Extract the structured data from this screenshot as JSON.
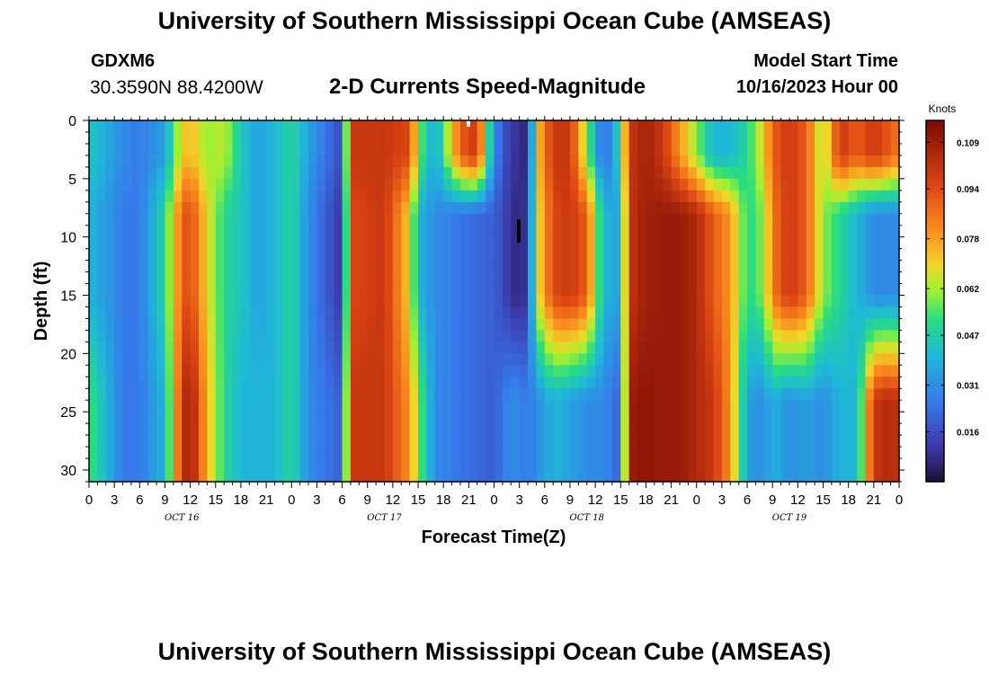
{
  "header": {
    "title": "University of Southern Mississippi Ocean Cube (AMSEAS)",
    "station_id": "GDXM6",
    "location": "30.3590N  88.4200W",
    "plot_title": "2-D Currents Speed-Magnitude",
    "model_start_label": "Model Start Time",
    "model_start_value": "10/16/2023 Hour 00"
  },
  "footer": {
    "title": "University of Southern Mississippi Ocean Cube (AMSEAS)"
  },
  "chart_data": {
    "type": "heatmap",
    "title": "2-D Currents Speed-Magnitude",
    "xlabel": "Forecast Time(Z)",
    "ylabel": "Depth (ft)",
    "x_range_hours": [
      0,
      96
    ],
    "y_range_ft": [
      0,
      31
    ],
    "y_inverted": true,
    "x_tick_labels": [
      "0",
      "3",
      "6",
      "9",
      "12",
      "15",
      "18",
      "21",
      "0",
      "3",
      "6",
      "9",
      "12",
      "15",
      "18",
      "21",
      "0",
      "3",
      "6",
      "9",
      "12",
      "15",
      "18",
      "21",
      "0",
      "3",
      "6",
      "9",
      "12",
      "15",
      "18",
      "21",
      "0"
    ],
    "y_ticks": [
      0,
      5,
      10,
      15,
      20,
      25,
      30
    ],
    "date_labels": [
      {
        "label": "OCT 16",
        "hour": 11
      },
      {
        "label": "OCT 17",
        "hour": 35
      },
      {
        "label": "OCT 18",
        "hour": 59
      },
      {
        "label": "OCT 19",
        "hour": 83
      }
    ],
    "colorbar": {
      "unit": "Knots",
      "min": 0.0,
      "max": 0.116,
      "tick_values": [
        0.016,
        0.031,
        0.047,
        0.062,
        0.078,
        0.094,
        0.109
      ],
      "tick_labels": [
        "0.016",
        "0.031",
        "0.047",
        "0.062",
        "0.078",
        "0.094",
        "0.109"
      ]
    },
    "speed_profile_by_hour": {
      "hours": [
        0,
        4,
        6,
        9,
        11,
        12,
        14,
        16,
        18,
        20,
        22,
        24,
        26,
        28,
        30,
        31,
        35,
        38,
        39,
        41,
        44,
        46,
        48,
        50,
        51,
        52,
        53,
        55,
        57,
        59,
        61,
        63,
        64,
        65,
        66,
        68,
        70,
        72,
        74,
        76,
        78,
        80,
        81,
        83,
        85,
        87,
        89,
        91,
        93,
        95,
        96
      ],
      "upper_ft_0_5": [
        0.045,
        0.03,
        0.026,
        0.035,
        0.07,
        0.075,
        0.06,
        0.065,
        0.045,
        0.035,
        0.04,
        0.05,
        0.035,
        0.025,
        0.015,
        0.1,
        0.1,
        0.095,
        0.06,
        0.035,
        0.09,
        0.1,
        0.03,
        0.01,
        0.01,
        0.005,
        0.07,
        0.1,
        0.1,
        0.06,
        0.02,
        0.05,
        0.1,
        0.104,
        0.108,
        0.1,
        0.08,
        0.06,
        0.04,
        0.04,
        0.05,
        0.07,
        0.09,
        0.1,
        0.09,
        0.06,
        0.1,
        0.09,
        0.1,
        0.09,
        0.085
      ],
      "mid_ft_10_15": [
        0.04,
        0.026,
        0.026,
        0.05,
        0.09,
        0.095,
        0.07,
        0.05,
        0.045,
        0.035,
        0.04,
        0.05,
        0.03,
        0.02,
        0.01,
        0.095,
        0.1,
        0.07,
        0.04,
        0.03,
        0.025,
        0.022,
        0.02,
        0.01,
        0.006,
        0.012,
        0.065,
        0.095,
        0.1,
        0.09,
        0.04,
        0.035,
        0.1,
        0.105,
        0.108,
        0.11,
        0.11,
        0.105,
        0.09,
        0.08,
        0.05,
        0.06,
        0.085,
        0.1,
        0.09,
        0.06,
        0.05,
        0.04,
        0.03,
        0.03,
        0.03
      ],
      "deep_ft_25_31": [
        0.055,
        0.026,
        0.026,
        0.04,
        0.1,
        0.11,
        0.075,
        0.05,
        0.04,
        0.04,
        0.04,
        0.05,
        0.03,
        0.025,
        0.02,
        0.1,
        0.1,
        0.08,
        0.06,
        0.03,
        0.025,
        0.022,
        0.02,
        0.03,
        0.03,
        0.025,
        0.03,
        0.04,
        0.035,
        0.03,
        0.03,
        0.02,
        0.108,
        0.112,
        0.112,
        0.11,
        0.11,
        0.105,
        0.1,
        0.08,
        0.035,
        0.03,
        0.04,
        0.03,
        0.035,
        0.03,
        0.04,
        0.04,
        0.1,
        0.105,
        0.1
      ]
    }
  }
}
